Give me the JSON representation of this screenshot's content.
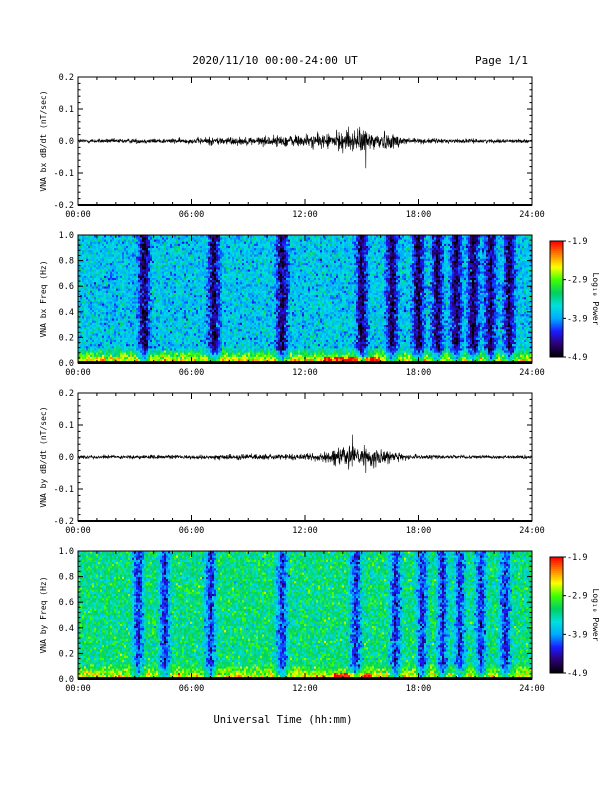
{
  "header": {
    "title": "2020/11/10  00:00-24:00 UT",
    "page": "Page 1/1"
  },
  "x_axis_title": "Universal Time (hh:mm)",
  "colors": {
    "trace": "#000000",
    "colormap": [
      "#000000",
      "#2a0070",
      "#1a1aff",
      "#00a8ff",
      "#00e0e0",
      "#00d060",
      "#40ff00",
      "#ffff00",
      "#ff8000",
      "#ff0000"
    ]
  },
  "chart_data": [
    {
      "type": "line",
      "title": "",
      "xlabel": "",
      "ylabel": "VNA bx dB/dt (nT/sec)",
      "xlim": [
        0,
        24
      ],
      "ylim": [
        -0.2,
        0.2
      ],
      "x_ticks": [
        "00:00",
        "06:00",
        "12:00",
        "18:00",
        "24:00"
      ],
      "y_ticks": [
        "-0.2",
        "-0.1",
        "0.0",
        "0.1",
        "0.2"
      ],
      "envelope": {
        "x_hours": [
          0,
          6,
          7,
          9,
          11,
          13,
          14,
          15,
          16,
          17,
          18,
          21,
          24
        ],
        "amplitude": [
          0.006,
          0.008,
          0.013,
          0.012,
          0.018,
          0.022,
          0.03,
          0.036,
          0.03,
          0.018,
          0.008,
          0.006,
          0.005
        ]
      },
      "peaks": {
        "max": 0.045,
        "min": -0.085
      }
    },
    {
      "type": "heatmap",
      "title": "",
      "xlabel": "",
      "ylabel": "VNA bx Freq (Hz)",
      "xlim": [
        0,
        24
      ],
      "ylim": [
        0,
        1.0
      ],
      "x_ticks": [
        "00:00",
        "06:00",
        "12:00",
        "18:00",
        "24:00"
      ],
      "y_ticks": [
        "0.0",
        "0.2",
        "0.4",
        "0.6",
        "0.8",
        "1.0"
      ],
      "colorbar": {
        "label": "Log₁₀ Power",
        "ticks": [
          "-1.9",
          "-2.9",
          "-3.9",
          "-4.9"
        ],
        "range": [
          -4.9,
          -1.9
        ]
      },
      "background_log_power": -3.7,
      "low_frequency_enhancement_log_power": -2.2,
      "low_power_vertical_bands_hours": [
        3.5,
        7.2,
        10.8,
        15.0,
        16.6,
        18.0,
        19.0,
        20.0,
        20.9,
        21.8,
        22.8
      ],
      "low_frequency_burst_hours": [
        13.0,
        16.0
      ]
    },
    {
      "type": "line",
      "title": "",
      "xlabel": "",
      "ylabel": "VNA by dB/dt (nT/sec)",
      "xlim": [
        0,
        24
      ],
      "ylim": [
        -0.2,
        0.2
      ],
      "x_ticks": [
        "00:00",
        "06:00",
        "12:00",
        "18:00",
        "24:00"
      ],
      "y_ticks": [
        "-0.2",
        "-0.1",
        "0.0",
        "0.1",
        "0.2"
      ],
      "envelope": {
        "x_hours": [
          0,
          6,
          8,
          10,
          12,
          13,
          14,
          15,
          16,
          17,
          18,
          21,
          24
        ],
        "amplitude": [
          0.005,
          0.006,
          0.008,
          0.008,
          0.009,
          0.015,
          0.03,
          0.035,
          0.025,
          0.012,
          0.007,
          0.005,
          0.005
        ]
      },
      "peaks": {
        "max": 0.07,
        "min": -0.05
      }
    },
    {
      "type": "heatmap",
      "title": "",
      "xlabel": "",
      "ylabel": "VNA by Freq (Hz)",
      "xlim": [
        0,
        24
      ],
      "ylim": [
        0,
        1.0
      ],
      "x_ticks": [
        "00:00",
        "06:00",
        "12:00",
        "18:00",
        "24:00"
      ],
      "y_ticks": [
        "0.0",
        "0.2",
        "0.4",
        "0.6",
        "0.8",
        "1.0"
      ],
      "colorbar": {
        "label": "Log₁₀ Power",
        "ticks": [
          "-1.9",
          "-2.9",
          "-3.9",
          "-4.9"
        ],
        "range": [
          -4.9,
          -1.9
        ]
      },
      "background_log_power": -3.3,
      "low_frequency_enhancement_log_power": -2.4,
      "low_power_vertical_bands_hours": [
        3.2,
        4.6,
        7.0,
        10.8,
        14.7,
        16.8,
        18.2,
        19.3,
        20.2,
        21.3,
        22.6
      ],
      "low_frequency_burst_hours": [
        13.5,
        15.5
      ]
    }
  ]
}
